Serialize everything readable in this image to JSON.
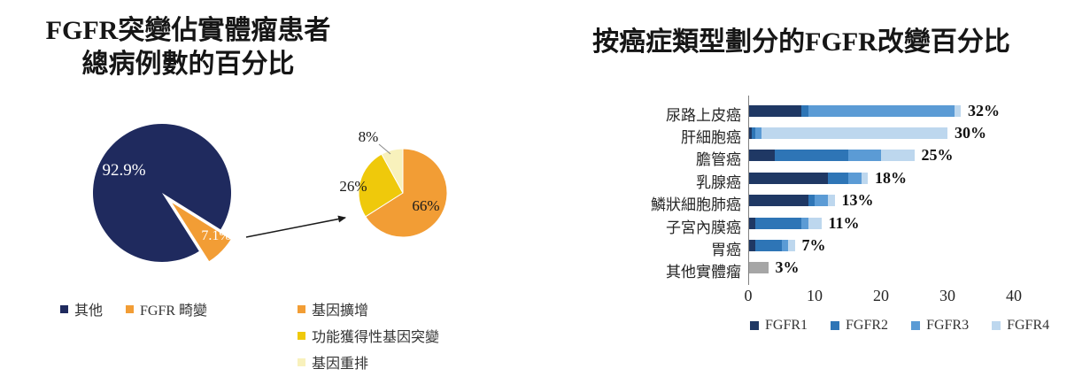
{
  "titles": {
    "pie_title_line1": "FGFR突變佔實體瘤患者",
    "pie_title_line2": "總病例數的百分比",
    "bar_title": "按癌症類型劃分的FGFR改變百分比"
  },
  "chart_data": [
    {
      "type": "pie",
      "name": "fgfr-share-of-solid-tumours",
      "title": "FGFR突變佔實體瘤患者總病例數的百分比",
      "slices": [
        {
          "label": "其他",
          "value": 92.9,
          "display": "92.9%",
          "color": "#1F2A5E",
          "exploded": false
        },
        {
          "label": "FGFR 畸變",
          "value": 7.1,
          "display": "7.1%",
          "color": "#F29D35",
          "exploded": true
        }
      ]
    },
    {
      "type": "pie",
      "name": "fgfr-aberration-breakdown",
      "slices": [
        {
          "label": "基因擴增",
          "value": 66,
          "display": "66%",
          "color": "#F29D35"
        },
        {
          "label": "功能獲得性基因突變",
          "value": 26,
          "display": "26%",
          "color": "#EFC90B"
        },
        {
          "label": "基因重排",
          "value": 8,
          "display": "8%",
          "color": "#F8F1BC"
        }
      ]
    },
    {
      "type": "bar",
      "name": "fgfr-alterations-by-cancer-type",
      "orientation": "horizontal",
      "title": "按癌症類型劃分的FGFR改變百分比",
      "categories": [
        "尿路上皮癌",
        "肝細胞癌",
        "膽管癌",
        "乳腺癌",
        "鱗狀細胞肺癌",
        "子宮內膜癌",
        "胃癌",
        "其他實體瘤"
      ],
      "totals": [
        32,
        30,
        25,
        18,
        13,
        11,
        7,
        3
      ],
      "total_labels": [
        "32%",
        "30%",
        "25%",
        "18%",
        "13%",
        "11%",
        "7%",
        "3%"
      ],
      "series": [
        {
          "name": "FGFR1",
          "color": "#1F3864",
          "values": [
            8,
            0.5,
            4,
            12,
            9,
            1,
            1,
            0
          ]
        },
        {
          "name": "FGFR2",
          "color": "#2E75B6",
          "values": [
            1,
            0.5,
            11,
            3,
            1,
            7,
            4,
            0
          ]
        },
        {
          "name": "FGFR3",
          "color": "#5B9BD5",
          "values": [
            22,
            1,
            5,
            2,
            2,
            1,
            1,
            0
          ]
        },
        {
          "name": "FGFR4",
          "color": "#BDD7EE",
          "values": [
            1,
            28,
            5,
            1,
            1,
            2,
            1,
            0
          ]
        },
        {
          "name": "其他",
          "color": "#A6A6A6",
          "values": [
            0,
            0,
            0,
            0,
            0,
            0,
            0,
            3
          ]
        }
      ],
      "xlim": [
        0,
        40
      ],
      "xticks": [
        "0",
        "10",
        "20",
        "30",
        "40"
      ],
      "xlabel": "",
      "ylabel": "",
      "legend": [
        {
          "label": "FGFR1",
          "color": "#1F3864"
        },
        {
          "label": "FGFR2",
          "color": "#2E75B6"
        },
        {
          "label": "FGFR3",
          "color": "#5B9BD5"
        },
        {
          "label": "FGFR4",
          "color": "#BDD7EE"
        }
      ]
    }
  ]
}
